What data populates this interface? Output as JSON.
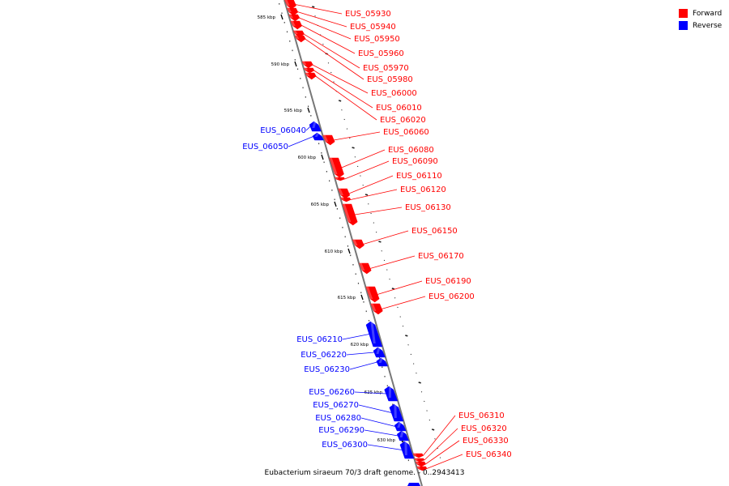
{
  "legend": {
    "forward_label": "Forward",
    "reverse_label": "Reverse",
    "forward_color": "#ff0000",
    "reverse_color": "#0000ff"
  },
  "caption": "Eubacterium siraeum 70/3 draft genome. - 0..2943413",
  "chart_data": {
    "type": "genome-map",
    "tick_labels": [
      "585 kbp",
      "590 kbp",
      "595 kbp",
      "600 kbp",
      "605 kbp",
      "610 kbp",
      "615 kbp",
      "620 kbp",
      "625 kbp",
      "630 kbp"
    ],
    "genes": [
      {
        "name": "EUS_05930",
        "strand": "forward"
      },
      {
        "name": "EUS_05940",
        "strand": "forward"
      },
      {
        "name": "EUS_05950",
        "strand": "forward"
      },
      {
        "name": "EUS_05960",
        "strand": "forward"
      },
      {
        "name": "EUS_05970",
        "strand": "forward"
      },
      {
        "name": "EUS_05980",
        "strand": "forward"
      },
      {
        "name": "EUS_06000",
        "strand": "forward"
      },
      {
        "name": "EUS_06010",
        "strand": "forward"
      },
      {
        "name": "EUS_06020",
        "strand": "forward"
      },
      {
        "name": "EUS_06040",
        "strand": "reverse"
      },
      {
        "name": "EUS_06050",
        "strand": "reverse"
      },
      {
        "name": "EUS_06060",
        "strand": "forward"
      },
      {
        "name": "EUS_06080",
        "strand": "forward"
      },
      {
        "name": "EUS_06090",
        "strand": "forward"
      },
      {
        "name": "EUS_06110",
        "strand": "forward"
      },
      {
        "name": "EUS_06120",
        "strand": "forward"
      },
      {
        "name": "EUS_06130",
        "strand": "forward"
      },
      {
        "name": "EUS_06150",
        "strand": "forward"
      },
      {
        "name": "EUS_06170",
        "strand": "forward"
      },
      {
        "name": "EUS_06190",
        "strand": "forward"
      },
      {
        "name": "EUS_06200",
        "strand": "forward"
      },
      {
        "name": "EUS_06210",
        "strand": "reverse"
      },
      {
        "name": "EUS_06220",
        "strand": "reverse"
      },
      {
        "name": "EUS_06230",
        "strand": "reverse"
      },
      {
        "name": "EUS_06260",
        "strand": "reverse"
      },
      {
        "name": "EUS_06270",
        "strand": "reverse"
      },
      {
        "name": "EUS_06280",
        "strand": "reverse"
      },
      {
        "name": "EUS_06290",
        "strand": "reverse"
      },
      {
        "name": "EUS_06300",
        "strand": "reverse"
      },
      {
        "name": "EUS_06310",
        "strand": "forward"
      },
      {
        "name": "EUS_06320",
        "strand": "forward"
      },
      {
        "name": "EUS_06330",
        "strand": "forward"
      },
      {
        "name": "EUS_06340",
        "strand": "forward"
      }
    ]
  }
}
